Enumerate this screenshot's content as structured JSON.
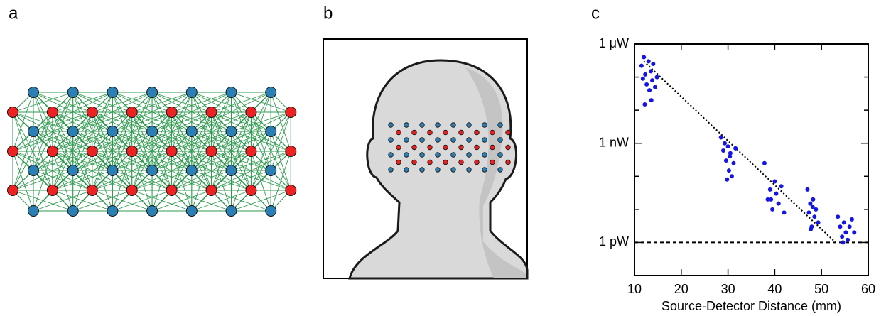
{
  "panel_labels": [
    "a",
    "b",
    "c"
  ],
  "chart_data": {
    "type": "scatter",
    "log_y": true,
    "color": "#1414e6",
    "xlabel": "Source-Detector Distance (mm)",
    "xlim": [
      10,
      60
    ],
    "xticks": [
      10,
      20,
      30,
      40,
      50,
      60
    ],
    "ylim": [
      1e-13,
      1e-06
    ],
    "yticks": [
      {
        "value": 1e-06,
        "label": "1 μW"
      },
      {
        "value": 1e-09,
        "label": "1 nW"
      },
      {
        "value": 1e-12,
        "label": "1 pW"
      }
    ],
    "minor_yticks": [
      1e-07,
      1e-08,
      1e-10,
      1e-11
    ],
    "reference_line": 1e-12,
    "fit_line": {
      "x": [
        12,
        53
      ],
      "values": [
        3e-07,
        1e-12
      ]
    },
    "x": [
      11.5,
      12,
      12.3,
      12.6,
      13,
      13.2,
      13.5,
      13.8,
      14,
      14.4,
      12.2,
      13.6,
      11.8,
      14.8,
      28.5,
      29,
      29.3,
      29.6,
      30,
      30.2,
      30.5,
      30.8,
      31.2,
      31.6,
      29.8,
      30.4,
      37.8,
      38.5,
      39,
      39.5,
      40,
      40.3,
      40.8,
      41.4,
      42,
      39.2,
      47,
      47.3,
      47.6,
      47.9,
      48.2,
      48.5,
      48.8,
      49.3,
      47.7,
      48.1,
      53.5,
      54,
      54.4,
      54.8,
      55.2,
      55.6,
      56,
      56.5,
      57,
      54.6
    ],
    "values": [
      2.2e-07,
      4e-07,
      1.2e-07,
      6e-08,
      3e-07,
      4e-08,
      1.5e-07,
      8e-08,
      2.5e-07,
      5e-08,
      1.5e-08,
      2e-08,
      9e-08,
      1e-07,
      1.5e-09,
      6e-10,
      1e-09,
      3e-10,
      8e-10,
      1.5e-10,
      5e-10,
      1e-10,
      2.5e-10,
      7e-10,
      8e-11,
      4e-10,
      2.5e-10,
      2e-11,
      4e-11,
      1e-11,
      7e-11,
      3e-11,
      1.5e-11,
      5e-11,
      8e-12,
      2e-11,
      4e-11,
      8e-12,
      1.5e-11,
      3e-12,
      2e-11,
      6e-12,
      1e-11,
      4e-12,
      2.5e-12,
      1.2e-11,
      6e-12,
      3e-12,
      1.5e-12,
      4e-12,
      2e-12,
      1.2e-12,
      3e-12,
      5e-12,
      2e-12,
      1e-12
    ]
  }
}
